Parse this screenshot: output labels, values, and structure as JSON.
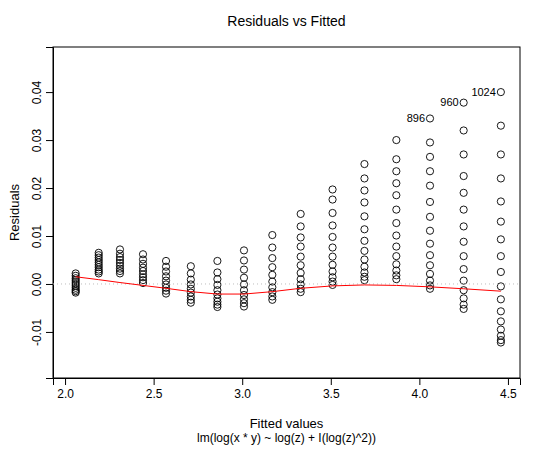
{
  "chart_data": {
    "type": "scatter",
    "title": "Residuals vs Fitted",
    "x_label": "Fitted values",
    "subtitle": "lm(log(x * y) ~ log(z) + I(log(z)^2))",
    "y_label": "Residuals",
    "xlim": [
      1.932,
      4.568
    ],
    "ylim": [
      -0.0196,
      0.0494
    ],
    "xticks": [
      {
        "value": 2,
        "label": "2.0"
      },
      2.5,
      {
        "value": 3,
        "label": "3.0"
      },
      3.5,
      {
        "value": 4,
        "label": "4.0"
      },
      4.5
    ],
    "yticks": [
      -0.01,
      {
        "value": 0,
        "label": "0.00"
      },
      0.01,
      0.02,
      0.03,
      0.04
    ],
    "series": [
      {
        "type": "scatter",
        "marker": "circle",
        "color": "#000000",
        "x": [
          2.06,
          2.06,
          2.06,
          2.06,
          2.06,
          2.06,
          2.06,
          2.06,
          2.06,
          2.06,
          2.06,
          2.19,
          2.19,
          2.19,
          2.19,
          2.19,
          2.19,
          2.19,
          2.19,
          2.19,
          2.19,
          2.31,
          2.31,
          2.31,
          2.31,
          2.31,
          2.31,
          2.31,
          2.31,
          2.31,
          2.44,
          2.44,
          2.44,
          2.44,
          2.44,
          2.44,
          2.44,
          2.44,
          2.44,
          2.57,
          2.57,
          2.57,
          2.57,
          2.57,
          2.57,
          2.57,
          2.57,
          2.57,
          2.71,
          2.71,
          2.71,
          2.71,
          2.71,
          2.71,
          2.71,
          2.71,
          2.71,
          2.86,
          2.86,
          2.86,
          2.86,
          2.86,
          2.86,
          2.86,
          2.86,
          2.86,
          2.86,
          3.01,
          3.01,
          3.01,
          3.01,
          3.01,
          3.01,
          3.01,
          3.01,
          3.01,
          3.01,
          3.17,
          3.17,
          3.17,
          3.17,
          3.17,
          3.17,
          3.17,
          3.17,
          3.17,
          3.17,
          3.33,
          3.33,
          3.33,
          3.33,
          3.33,
          3.33,
          3.33,
          3.33,
          3.33,
          3.33,
          3.33,
          3.51,
          3.51,
          3.51,
          3.51,
          3.51,
          3.51,
          3.51,
          3.51,
          3.51,
          3.51,
          3.51,
          3.51,
          3.69,
          3.69,
          3.69,
          3.69,
          3.69,
          3.69,
          3.69,
          3.69,
          3.69,
          3.69,
          3.69,
          3.69,
          3.69,
          3.87,
          3.87,
          3.87,
          3.87,
          3.87,
          3.87,
          3.87,
          3.87,
          3.87,
          3.87,
          3.87,
          3.87,
          3.87,
          3.87,
          4.06,
          4.06,
          4.06,
          4.06,
          4.06,
          4.06,
          4.06,
          4.06,
          4.06,
          4.06,
          4.06,
          4.06,
          4.06,
          4.06,
          4.06,
          4.25,
          4.25,
          4.25,
          4.25,
          4.25,
          4.25,
          4.25,
          4.25,
          4.25,
          4.25,
          4.25,
          4.25,
          4.25,
          4.25,
          4.25,
          4.46,
          4.46,
          4.46,
          4.46,
          4.46,
          4.46,
          4.46,
          4.46,
          4.46,
          4.46,
          4.46,
          4.46,
          4.46,
          4.46,
          4.46,
          4.46,
          4.46
        ],
        "values": [
          -0.0018,
          -0.0015,
          -0.0012,
          -0.0008,
          -0.0004,
          0,
          0.0004,
          0.0008,
          0.0012,
          0.0017,
          0.0022,
          0.0022,
          0.0026,
          0.003,
          0.0035,
          0.004,
          0.0045,
          0.005,
          0.0055,
          0.006,
          0.0065,
          0.0022,
          0.0027,
          0.0032,
          0.0038,
          0.0044,
          0.005,
          0.0056,
          0.0063,
          0.0072,
          0.0002,
          0.0008,
          0.0014,
          0.002,
          0.0027,
          0.0034,
          0.0042,
          0.0051,
          0.0062,
          -0.002,
          -0.0014,
          -0.0008,
          -0.0001,
          0.0007,
          0.0016,
          0.0026,
          0.0036,
          0.0048,
          -0.0039,
          -0.0033,
          -0.0026,
          -0.0018,
          -0.001,
          -0.0001,
          0.0009,
          0.0022,
          0.0037,
          -0.0048,
          -0.0043,
          -0.0037,
          -0.003,
          -0.0022,
          -0.0013,
          -0.0002,
          0.001,
          0.0024,
          0.0048,
          -0.0047,
          -0.004,
          -0.0032,
          -0.0023,
          -0.0013,
          -0.0001,
          0.0013,
          0.003,
          0.0049,
          0.007,
          -0.0033,
          -0.0026,
          -0.0017,
          -0.0007,
          0.0005,
          0.0019,
          0.0035,
          0.0054,
          0.0076,
          0.0102,
          -0.0017,
          -0.001,
          -0.0001,
          0.001,
          0.0023,
          0.0039,
          0.0057,
          0.0078,
          0.0097,
          0.012,
          0.0146,
          -0.0002,
          0.0005,
          0.0014,
          0.0026,
          0.004,
          0.0057,
          0.0076,
          0.0098,
          0.0122,
          0.0148,
          0.0176,
          0.0197,
          0.0008,
          0.0015,
          0.0024,
          0.0036,
          0.0051,
          0.0069,
          0.009,
          0.0114,
          0.0141,
          0.017,
          0.0195,
          0.022,
          0.025,
          0.001,
          0.0018,
          0.0028,
          0.0041,
          0.0058,
          0.0078,
          0.0101,
          0.0127,
          0.0155,
          0.0185,
          0.021,
          0.0235,
          0.026,
          0.03,
          -0.001,
          -0.0003,
          0.0007,
          0.0021,
          0.0039,
          0.006,
          0.0084,
          0.0111,
          0.014,
          0.0171,
          0.0205,
          0.0235,
          0.0265,
          0.0295,
          0.0345,
          -0.0052,
          -0.0043,
          -0.003,
          -0.0013,
          0.0007,
          0.0031,
          0.0058,
          0.0088,
          0.012,
          0.0155,
          0.019,
          0.0225,
          0.027,
          0.032,
          0.0378,
          -0.0122,
          -0.0117,
          -0.0108,
          -0.0095,
          -0.0078,
          -0.0057,
          -0.0032,
          -0.0005,
          0.0025,
          0.0058,
          0.0093,
          0.013,
          0.0172,
          0.022,
          0.027,
          0.033,
          0.04
        ]
      },
      {
        "type": "line",
        "line_style": "dotted",
        "color": "#bebebe",
        "x": [
          1.932,
          4.568
        ],
        "values": [
          0,
          0
        ]
      },
      {
        "type": "line",
        "line_style": "solid",
        "color": "#ff0000",
        "x": [
          2.06,
          2.19,
          2.31,
          2.44,
          2.57,
          2.71,
          2.86,
          3.01,
          3.17,
          3.33,
          3.51,
          3.69,
          3.87,
          4.06,
          4.25,
          4.46
        ],
        "values": [
          0.0015,
          0.0009,
          0.0003,
          -0.0003,
          -0.0009,
          -0.0016,
          -0.0021,
          -0.0021,
          -0.0016,
          -0.0009,
          -0.0004,
          -0.0002,
          -0.0003,
          -0.0006,
          -0.001,
          -0.0015
        ]
      }
    ],
    "annotations": [
      {
        "text": "896",
        "x": 4.06,
        "y": 0.0345
      },
      {
        "text": "960",
        "x": 4.25,
        "y": 0.0378
      },
      {
        "text": "1024",
        "x": 4.46,
        "y": 0.04
      }
    ]
  }
}
